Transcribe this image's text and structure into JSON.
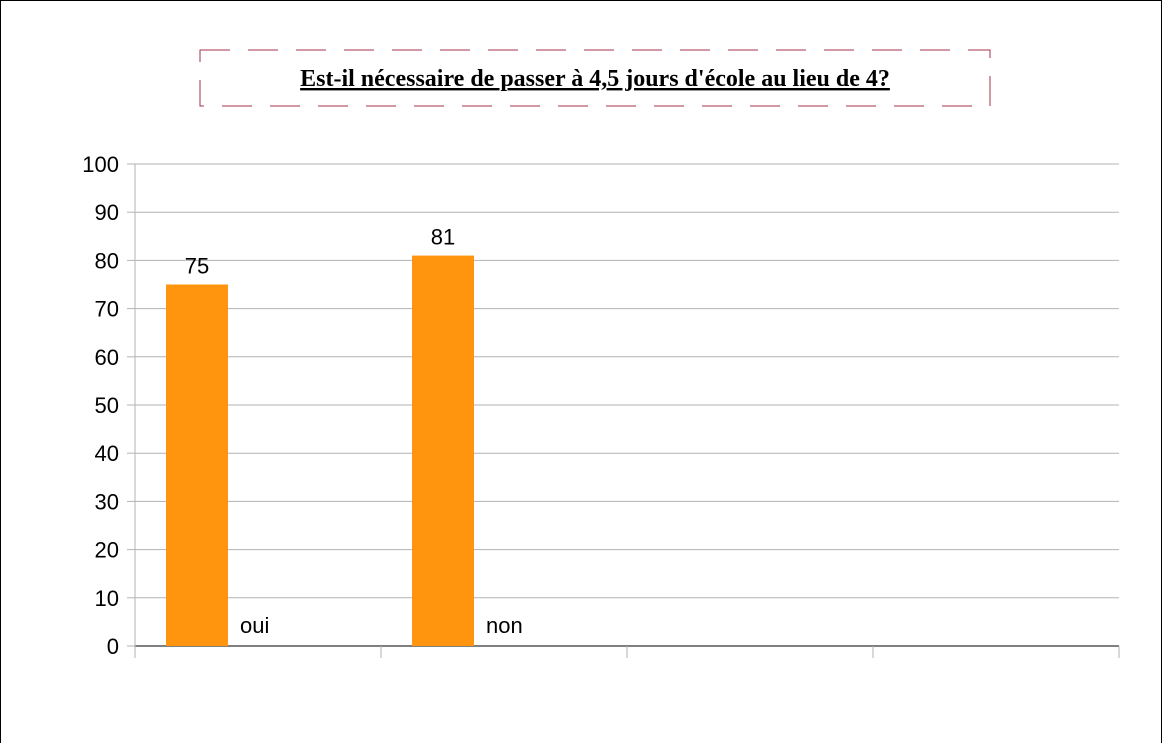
{
  "chart_data": {
    "type": "bar",
    "title": "Est-il nécessaire de passer à 4,5 jours d'école au lieu de 4?",
    "categories": [
      "oui",
      "non"
    ],
    "values": [
      75,
      81
    ],
    "value_labels": [
      "75",
      "81"
    ],
    "ylim": [
      0,
      100
    ],
    "yticks": [
      "0",
      "10",
      "20",
      "30",
      "40",
      "50",
      "60",
      "70",
      "80",
      "90",
      "100"
    ],
    "grid": true,
    "legend": "none",
    "colors": {
      "bar": "#ff950e",
      "grid": "#b3b3b3",
      "title_border": "#a0334a",
      "frame": "#000000"
    }
  }
}
